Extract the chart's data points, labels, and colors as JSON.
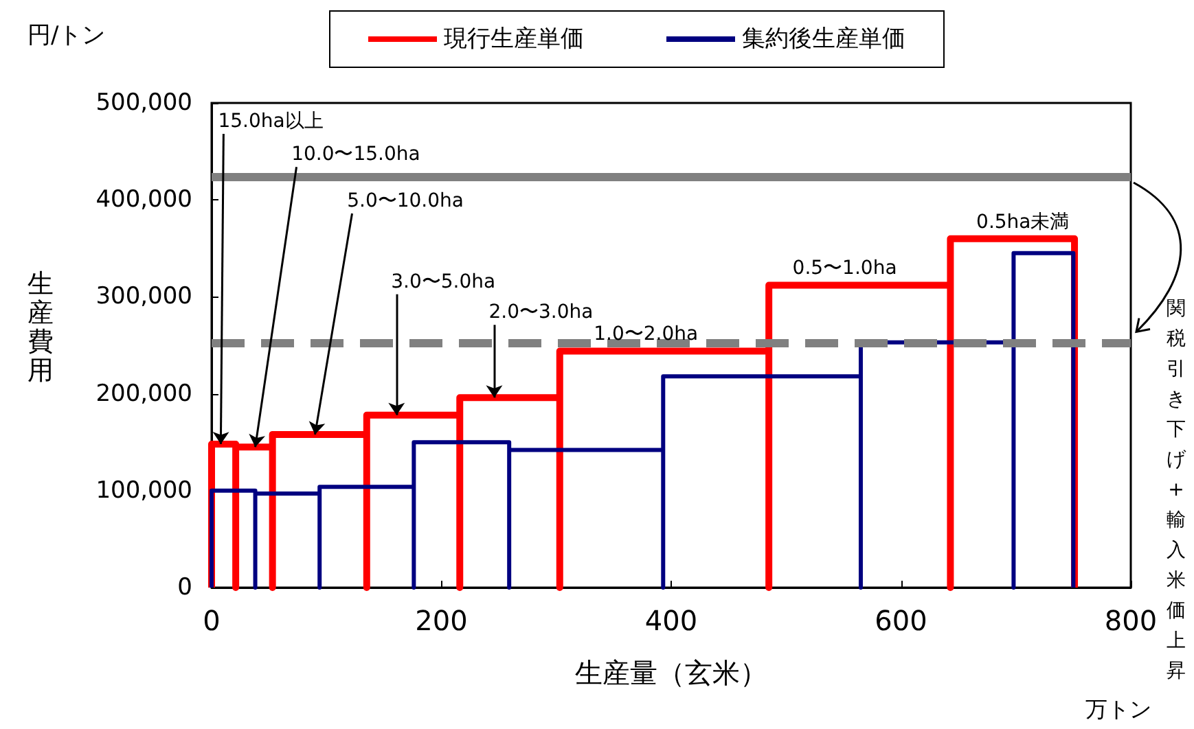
{
  "chart_data": {
    "type": "line",
    "xlabel": "生産量（玄米）",
    "ylabel": "生産費用",
    "series": [
      {
        "name": "現行生産単価",
        "color": "#ff0000",
        "x": [
          0,
          0,
          21,
          21,
          21,
          53,
          53,
          53,
          135,
          135,
          135,
          216,
          216,
          216,
          303,
          303,
          303,
          485,
          485,
          485,
          643,
          643,
          643,
          751,
          751
        ],
        "values": [
          0,
          148000,
          148000,
          0,
          145000,
          145000,
          0,
          158000,
          158000,
          0,
          178000,
          178000,
          0,
          196000,
          196000,
          0,
          244000,
          244000,
          0,
          312000,
          312000,
          0,
          360000,
          360000,
          0
        ]
      },
      {
        "name": "集約後生産単価",
        "color": "#000080",
        "x": [
          0,
          0,
          38,
          38,
          38,
          94,
          94,
          94,
          176,
          176,
          176,
          259,
          259,
          259,
          393,
          393,
          393,
          565,
          565,
          565,
          698,
          698,
          698,
          750,
          750
        ],
        "values": [
          0,
          100000,
          100000,
          0,
          97000,
          97000,
          0,
          104000,
          104000,
          0,
          150000,
          150000,
          0,
          142000,
          142000,
          0,
          218000,
          218000,
          0,
          253000,
          253000,
          0,
          345000,
          345000,
          0
        ]
      }
    ],
    "xlim": [
      0,
      800
    ],
    "xticks": [
      0,
      200,
      400,
      600,
      800
    ],
    "ylim": [
      0,
      500000
    ],
    "yticks": [
      {
        "value": 0,
        "label": "0"
      },
      {
        "value": 100000,
        "label": "100,000"
      },
      {
        "value": 200000,
        "label": "200,000"
      },
      {
        "value": 300000,
        "label": "300,000"
      },
      {
        "value": 400000,
        "label": "400,000"
      },
      {
        "value": 500000,
        "label": "500,000"
      }
    ],
    "ref_lines": [
      {
        "axis": "y",
        "value": 424000,
        "color": "#808080",
        "line_style": "solid"
      },
      {
        "axis": "y",
        "value": 253000,
        "color": "#808080",
        "line_style": "dashed"
      }
    ],
    "annotations": [
      "円/トン",
      "万トン",
      "関税引き下げ+輸入米価上昇",
      {
        "text": "15.0ha以上",
        "x": 8,
        "y": 148000
      },
      {
        "text": "10.0〜15.0ha",
        "x": 38,
        "y": 145000
      },
      {
        "text": "5.0〜10.0ha",
        "x": 90,
        "y": 158000
      },
      {
        "text": "3.0〜5.0ha",
        "x": 161,
        "y": 178000
      },
      {
        "text": "2.0〜3.0ha",
        "x": 246,
        "y": 196000
      },
      {
        "text": "1.0〜2.0ha",
        "x": 378,
        "y": 244000
      },
      {
        "text": "0.5〜1.0ha",
        "x": 551,
        "y": 312000
      },
      {
        "text": "0.5ha未満",
        "x": 706,
        "y": 360000
      }
    ],
    "legend": "top",
    "grid": false,
    "marker": "none",
    "line_style": "solid"
  }
}
